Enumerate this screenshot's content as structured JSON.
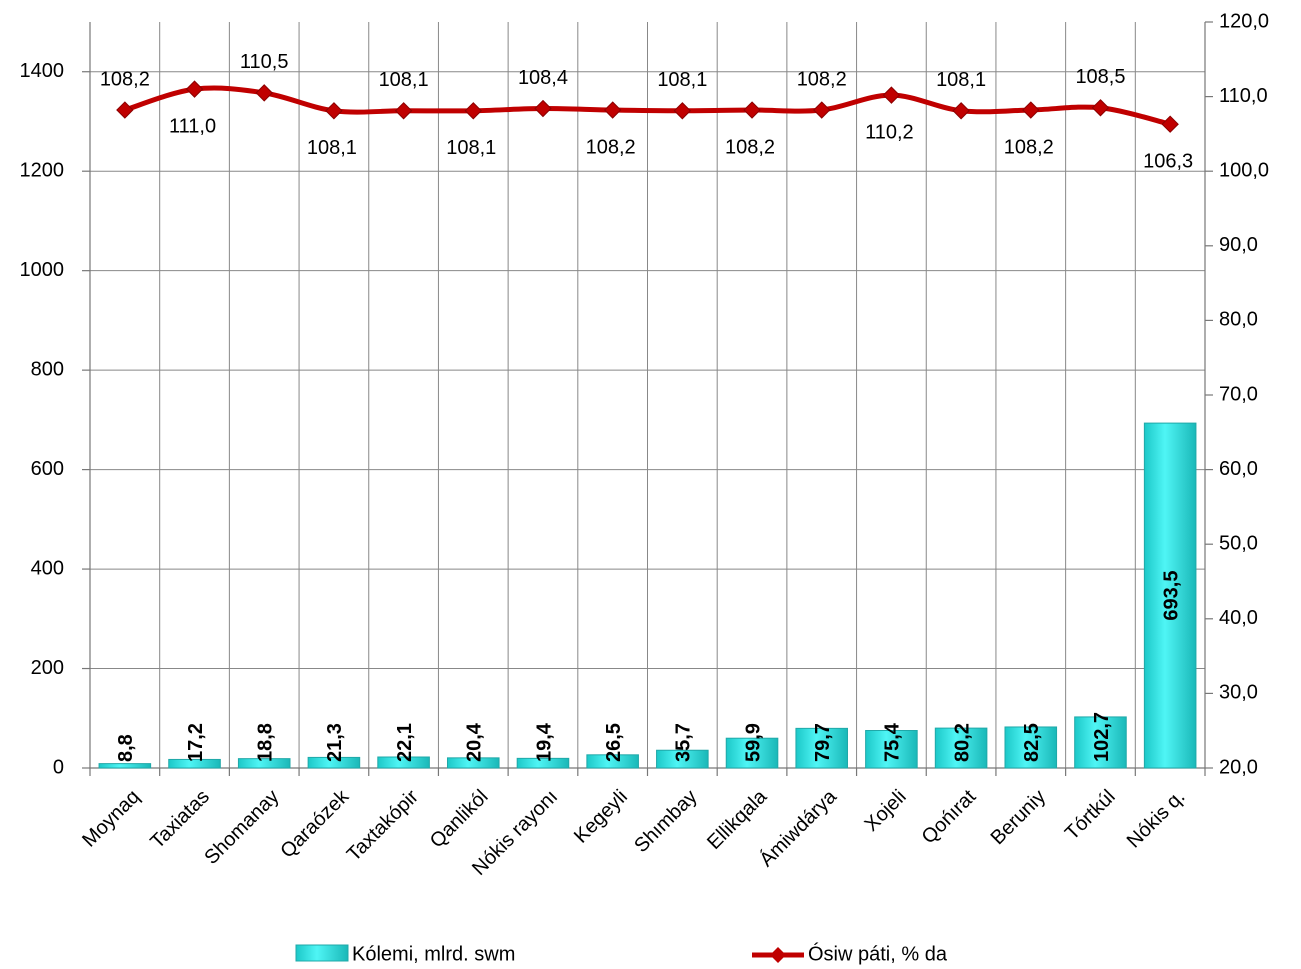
{
  "chart_data": {
    "type": "bar",
    "categories": [
      "Moynaq",
      "Taxiatas",
      "Shomanay",
      "Qaraózek",
      "Taxtakópir",
      "Qanlikól",
      "Nókis rayonı",
      "Kegeyli",
      "Shımbay",
      "Ellikqala",
      "Ámiwdárya",
      "Xojeli",
      "Qońırat",
      "Beruniy",
      "Tórtkúl",
      "Nókis q."
    ],
    "series": [
      {
        "name": "Kólemi, mlrd. swm",
        "type": "bar",
        "color": "#33e0e0",
        "values": [
          8.8,
          17.2,
          18.8,
          21.3,
          22.1,
          20.4,
          19.4,
          26.5,
          35.7,
          59.9,
          79.7,
          75.4,
          80.2,
          82.5,
          102.7,
          693.5
        ],
        "value_labels": [
          "8,8",
          "17,2",
          "18,8",
          "21,3",
          "22,1",
          "20,4",
          "19,4",
          "26,5",
          "35,7",
          "59,9",
          "79,7",
          "75,4",
          "80,2",
          "82,5",
          "102,7",
          "693,5"
        ]
      },
      {
        "name": "Ósiw páti, % da",
        "type": "line",
        "axis": "y2",
        "color": "#c00000",
        "values": [
          108.2,
          111.0,
          110.5,
          108.1,
          108.1,
          108.1,
          108.4,
          108.2,
          108.1,
          108.2,
          108.2,
          110.2,
          108.1,
          108.2,
          108.5,
          106.3
        ],
        "value_labels": [
          "108,2",
          "111,0",
          "110,5",
          "108,1",
          "108,1",
          "108,1",
          "108,4",
          "108,2",
          "108,1",
          "108,2",
          "108,2",
          "110,2",
          "108,1",
          "108,2",
          "108,5",
          "106,3"
        ]
      }
    ],
    "ylim": [
      0,
      1500
    ],
    "yticks": [
      0,
      200,
      400,
      600,
      800,
      1000,
      1200,
      1400
    ],
    "y2lim": [
      20,
      120
    ],
    "y2ticks": [
      {
        "value": 20,
        "label": "20,0"
      },
      {
        "value": 30,
        "label": "30,0"
      },
      {
        "value": 40,
        "label": "40,0"
      },
      {
        "value": 50,
        "label": "50,0"
      },
      {
        "value": 60,
        "label": "60,0"
      },
      {
        "value": 70,
        "label": "70,0"
      },
      {
        "value": 80,
        "label": "80,0"
      },
      {
        "value": 90,
        "label": "90,0"
      },
      {
        "value": 100,
        "label": "100,0"
      },
      {
        "value": 110,
        "label": "110,0"
      },
      {
        "value": 120,
        "label": "120,0"
      }
    ],
    "grid": true,
    "legend": "bottom"
  }
}
